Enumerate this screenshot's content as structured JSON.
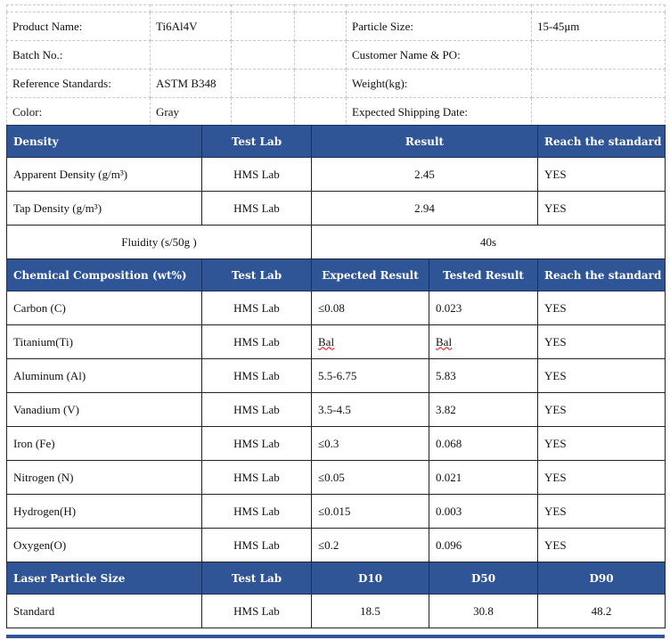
{
  "info": {
    "product_name_label": "Product Name:",
    "product_name": "Ti6Al4V",
    "particle_size_label": "Particle Size:",
    "particle_size": "15-45μm",
    "batch_label": "Batch No.:",
    "customer_label": "Customer Name & PO:",
    "standards_label": "Reference Standards:",
    "standards": "ASTM B348",
    "weight_label": "Weight(kg):",
    "color_label": "Color:",
    "color": "Gray",
    "shipping_label": "Expected Shipping Date:"
  },
  "density": {
    "headers": [
      "Density",
      "Test Lab",
      "Result",
      "Reach the standard"
    ],
    "rows": [
      {
        "name": "Apparent Density (g/m³)",
        "lab": "HMS Lab",
        "result": "2.45",
        "ok": "YES"
      },
      {
        "name": "Tap Density (g/m³)",
        "lab": "HMS Lab",
        "result": "2.94",
        "ok": "YES"
      }
    ],
    "fluidity_label": "Fluidity (s/50g )",
    "fluidity": "40s"
  },
  "chem": {
    "headers": [
      "Chemical Composition (wt%)",
      "Test Lab",
      "Expected Result",
      "Tested Result",
      "Reach the standard"
    ],
    "rows": [
      {
        "name": "Carbon (C)",
        "lab": "HMS Lab",
        "exp": "≤0.08",
        "test": "0.023",
        "ok": "YES"
      },
      {
        "name": "Titanium(Ti)",
        "lab": "HMS Lab",
        "exp": "Bal",
        "test": "Bal",
        "ok": "YES"
      },
      {
        "name": "Aluminum (Al)",
        "lab": "HMS Lab",
        "exp": "5.5-6.75",
        "test": "5.83",
        "ok": "YES"
      },
      {
        "name": "Vanadium (V)",
        "lab": "HMS Lab",
        "exp": "3.5-4.5",
        "test": "3.82",
        "ok": "YES"
      },
      {
        "name": "Iron (Fe)",
        "lab": "HMS Lab",
        "exp": "≤0.3",
        "test": "0.068",
        "ok": "YES"
      },
      {
        "name": "Nitrogen (N)",
        "lab": "HMS Lab",
        "exp": "≤0.05",
        "test": "0.021",
        "ok": "YES"
      },
      {
        "name": "Hydrogen(H)",
        "lab": "HMS Lab",
        "exp": "≤0.015",
        "test": "0.003",
        "ok": "YES"
      },
      {
        "name": "Oxygen(O)",
        "lab": "HMS Lab",
        "exp": "≤0.2",
        "test": "0.096",
        "ok": "YES"
      }
    ]
  },
  "laser": {
    "headers": [
      "Laser Particle Size",
      "Test Lab",
      "D10",
      "D50",
      "D90"
    ],
    "row": {
      "name": "Standard",
      "lab": "HMS Lab",
      "d10": "18.5",
      "d50": "30.8",
      "d90": "48.2"
    }
  },
  "colors": {
    "header_bg": "#2f5597"
  }
}
